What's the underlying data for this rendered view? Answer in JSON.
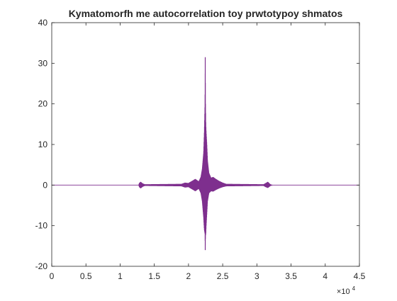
{
  "chart_data": {
    "type": "line",
    "title": "Kymatomorfh me autocorrelation toy prwtotypoy shmatos",
    "xlabel": "",
    "ylabel": "",
    "xlim": [
      0,
      4.5
    ],
    "ylim": [
      -20,
      40
    ],
    "x_exponent_label": "×10",
    "x_exponent_power": "4",
    "xticks": [
      0,
      0.5,
      1,
      1.5,
      2,
      2.5,
      3,
      3.5,
      4,
      4.5
    ],
    "xtick_labels": [
      "0",
      "0.5",
      "1",
      "1.5",
      "2",
      "2.5",
      "3",
      "3.5",
      "4",
      "4.5"
    ],
    "yticks": [
      -20,
      -10,
      0,
      10,
      20,
      30,
      40
    ],
    "ytick_labels": [
      "-20",
      "-10",
      "0",
      "10",
      "20",
      "30",
      "40"
    ],
    "grid": false,
    "line_color": "#7E2F8E",
    "series": [
      {
        "envelope_x": [
          0,
          1.27,
          1.28,
          1.3,
          1.33,
          1.36,
          1.9,
          1.95,
          2.0,
          2.05,
          2.1,
          2.15,
          2.18,
          2.2,
          2.22,
          2.23,
          2.24,
          2.245,
          2.25,
          2.255,
          2.26,
          2.27,
          2.28,
          2.3,
          2.33,
          2.36,
          2.4,
          2.45,
          2.5,
          2.55,
          3.1,
          3.13,
          3.16,
          3.19,
          3.22,
          4.5
        ],
        "envelope_upper": [
          0,
          0,
          0.5,
          0.8,
          0.4,
          0.2,
          0.3,
          0.6,
          0.5,
          1.0,
          1.5,
          0.9,
          2.0,
          4.0,
          8.0,
          13.0,
          20.0,
          31.5,
          20.0,
          15.0,
          13.0,
          10.0,
          6.0,
          3.0,
          1.8,
          2.0,
          1.5,
          1.0,
          0.6,
          0.3,
          0.2,
          0.5,
          0.8,
          0.3,
          0,
          0
        ],
        "envelope_lower": [
          0,
          0,
          -0.5,
          -0.8,
          -0.4,
          -0.2,
          -0.3,
          -0.6,
          -0.5,
          -1.0,
          -1.5,
          -0.9,
          -2.0,
          -4.0,
          -8.0,
          -11.0,
          -12.0,
          -16.0,
          -12.5,
          -12.0,
          -10.0,
          -7.0,
          -4.0,
          -2.0,
          -1.5,
          -1.6,
          -1.2,
          -0.8,
          -0.5,
          -0.3,
          -0.2,
          -0.5,
          -0.7,
          -0.3,
          0,
          0
        ]
      }
    ]
  }
}
